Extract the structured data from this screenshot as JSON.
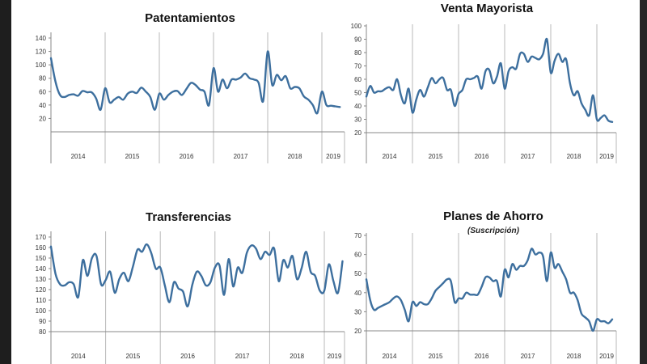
{
  "chart_data": [
    {
      "type": "line",
      "title": "Patentamientos",
      "x_labels": [
        "2014",
        "2015",
        "2016",
        "2017",
        "2018",
        "2019"
      ],
      "x_granularity": "monthly, Jan 2014 - May 2019",
      "yticks": [
        20,
        40,
        60,
        80,
        100,
        120,
        140
      ],
      "ylim": [
        0,
        140
      ],
      "grid": "vertical year separators",
      "color": "#3d6f9e",
      "values": [
        110,
        75,
        55,
        52,
        55,
        56,
        54,
        61,
        59,
        59,
        50,
        33,
        65,
        44,
        48,
        52,
        48,
        57,
        60,
        58,
        66,
        60,
        52,
        33,
        57,
        48,
        55,
        60,
        61,
        55,
        64,
        73,
        70,
        63,
        60,
        40,
        95,
        60,
        78,
        65,
        78,
        78,
        81,
        87,
        80,
        78,
        73,
        46,
        120,
        70,
        85,
        77,
        83,
        65,
        67,
        65,
        53,
        48,
        40,
        28,
        60,
        40,
        39,
        38,
        37
      ]
    },
    {
      "type": "line",
      "title": "Venta Mayorista",
      "x_labels": [
        "2014",
        "2015",
        "2016",
        "2017",
        "2018",
        "2019"
      ],
      "x_granularity": "monthly, Jan 2014 - May 2019",
      "yticks": [
        20,
        30,
        40,
        50,
        60,
        70,
        80,
        90,
        100
      ],
      "ylim": [
        20,
        100
      ],
      "grid": "vertical year separators",
      "color": "#3d6f9e",
      "values": [
        47,
        55,
        50,
        51,
        51,
        53,
        54,
        52,
        60,
        48,
        42,
        53,
        35,
        45,
        52,
        47,
        54,
        61,
        57,
        60,
        61,
        52,
        52,
        40,
        49,
        52,
        60,
        60,
        61,
        62,
        53,
        66,
        67,
        57,
        62,
        72,
        53,
        66,
        69,
        68,
        79,
        79,
        73,
        77,
        76,
        75,
        79,
        90,
        65,
        74,
        79,
        73,
        75,
        57,
        48,
        51,
        42,
        37,
        33,
        48,
        30,
        31,
        33,
        29,
        28
      ]
    },
    {
      "type": "line",
      "title": "Transferencias",
      "x_labels": [
        "2014",
        "2015",
        "2016",
        "2017",
        "2018",
        "2019"
      ],
      "x_granularity": "monthly, Jan 2014 - May 2019",
      "yticks": [
        80,
        90,
        100,
        110,
        120,
        130,
        140,
        150,
        160,
        170
      ],
      "ylim": [
        80,
        170
      ],
      "grid": "vertical year separators",
      "color": "#3d6f9e",
      "values": [
        161,
        135,
        125,
        124,
        127,
        125,
        113,
        148,
        133,
        150,
        152,
        125,
        129,
        137,
        117,
        130,
        136,
        128,
        142,
        158,
        156,
        163,
        155,
        140,
        141,
        124,
        108,
        127,
        121,
        118,
        104,
        124,
        137,
        133,
        124,
        127,
        141,
        143,
        115,
        149,
        123,
        141,
        136,
        155,
        162,
        159,
        149,
        156,
        153,
        159,
        128,
        148,
        141,
        152,
        130,
        140,
        156,
        137,
        133,
        119,
        119,
        144,
        128,
        117,
        147
      ]
    },
    {
      "type": "line",
      "title": "Planes de Ahorro",
      "subtitle": "(Suscripción)",
      "x_labels": [
        "2014",
        "2015",
        "2016",
        "2017",
        "2018",
        "2019"
      ],
      "x_granularity": "monthly, Jan 2014 - May 2019",
      "yticks": [
        20,
        30,
        40,
        50,
        60,
        70
      ],
      "ylim": [
        20,
        70
      ],
      "grid": "vertical year separators",
      "color": "#3d6f9e",
      "values": [
        47,
        36,
        31,
        32,
        33,
        34,
        35,
        37,
        38,
        36,
        31,
        25,
        35,
        33,
        35,
        34,
        34,
        37,
        41,
        43,
        45,
        47,
        46,
        35,
        37,
        37,
        40,
        39,
        39,
        39,
        43,
        48,
        48,
        46,
        46,
        38,
        52,
        48,
        55,
        52,
        54,
        54,
        57,
        63,
        60,
        61,
        59,
        46,
        61,
        53,
        55,
        51,
        47,
        40,
        40,
        36,
        29,
        27,
        25,
        20,
        26,
        25,
        25,
        24,
        26
      ]
    }
  ]
}
